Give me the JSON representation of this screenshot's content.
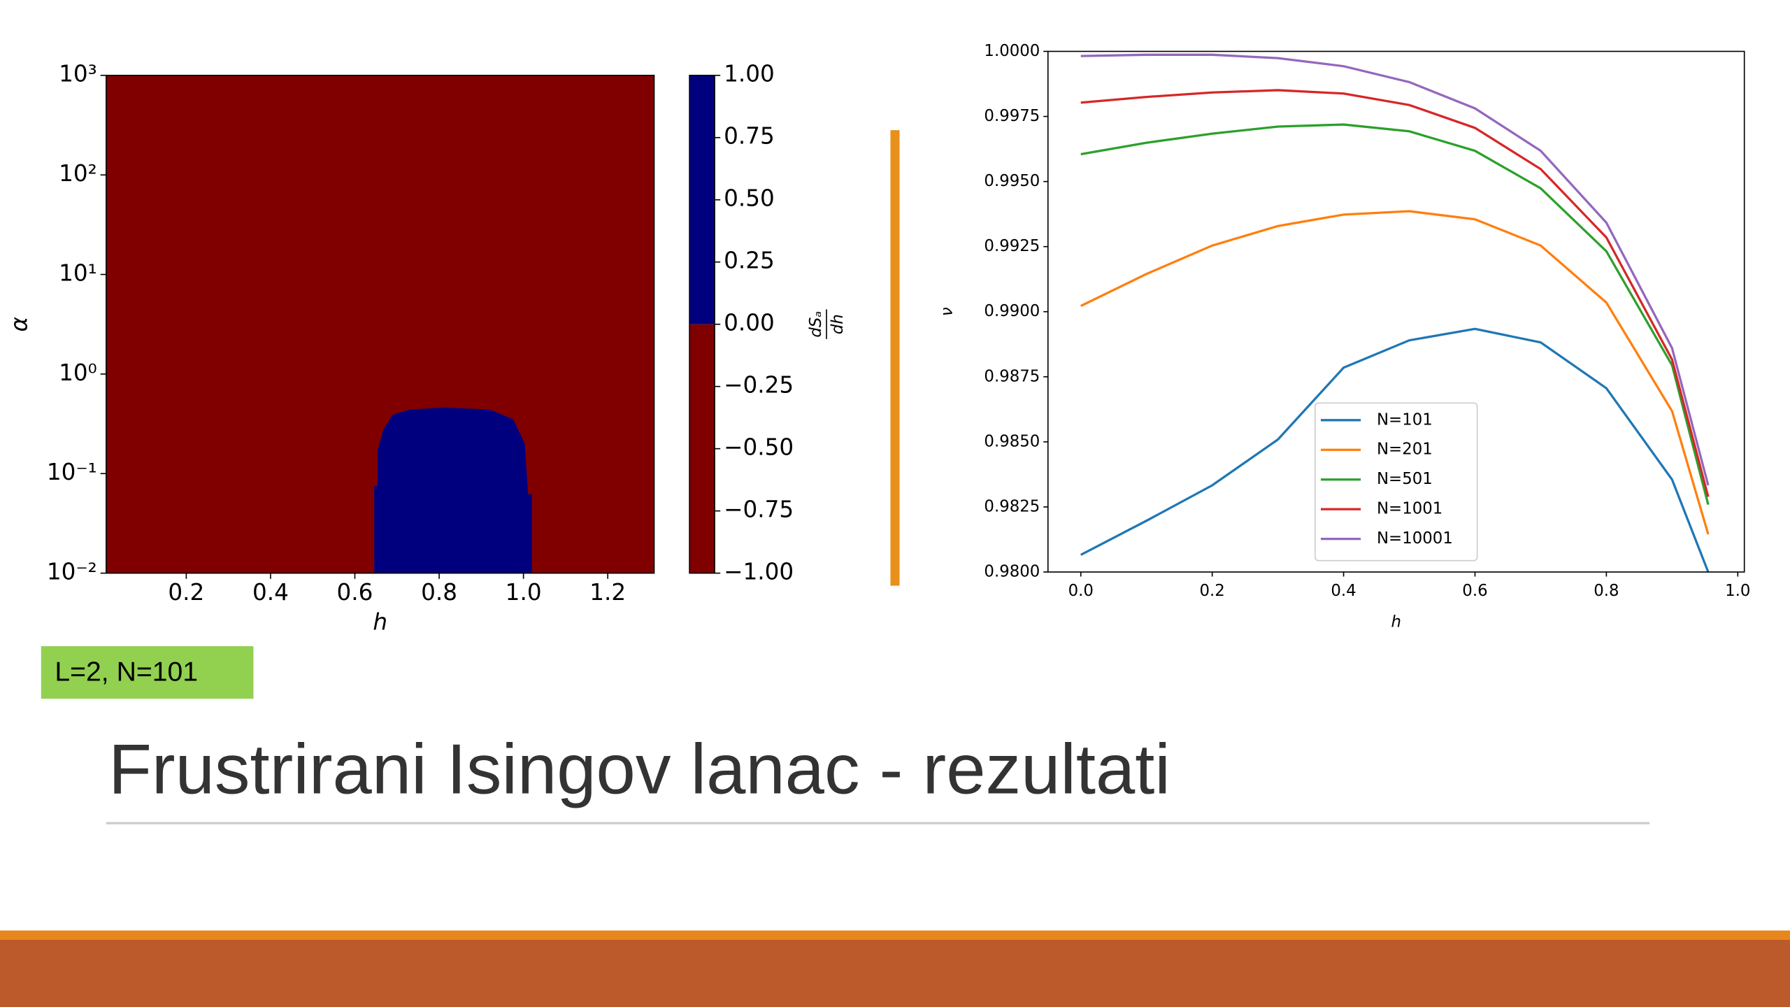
{
  "slide": {
    "title": "Frustrirani Isingov lanac - rezultati",
    "tag": "L=2, N=101"
  },
  "chart_data": [
    {
      "type": "heatmap",
      "xlabel": "h",
      "ylabel": "α",
      "xlim": [
        0.01,
        1.31
      ],
      "xticks": [
        0.2,
        0.4,
        0.6,
        0.8,
        {
          "value": 1.0,
          "label": "1.0"
        },
        1.2
      ],
      "ylim": [
        0.01,
        1000
      ],
      "yscale": "log",
      "yticks": [
        {
          "value": 0.01,
          "label": "10⁻²"
        },
        {
          "value": 0.1,
          "label": "10⁻¹"
        },
        {
          "value": 1,
          "label": "10⁰"
        },
        {
          "value": 10,
          "label": "10¹"
        },
        {
          "value": 100,
          "label": "10²"
        },
        {
          "value": 1000,
          "label": "10³"
        }
      ],
      "background_value": -1,
      "regions": [
        {
          "value": 1,
          "x": [
            0.646,
            0.646,
            0.654,
            0.654,
            0.668,
            0.69,
            0.73,
            0.81,
            0.92,
            0.976,
            1.003,
            1.011,
            1.02,
            1.02
          ],
          "y": [
            0.01,
            0.075,
            0.075,
            0.17,
            0.28,
            0.39,
            0.44,
            0.46,
            0.44,
            0.35,
            0.2,
            0.062,
            0.062,
            0.01
          ]
        }
      ],
      "clim": [
        -1,
        1
      ],
      "levels": [
        {
          "range": [
            -1,
            0
          ],
          "color": "#800000"
        },
        {
          "range": [
            0,
            1
          ],
          "color": "#00007f"
        }
      ],
      "cticks": [
        {
          "value": 1,
          "label": "1.00"
        },
        0.75,
        {
          "value": 0.5,
          "label": "0.50"
        },
        0.25,
        {
          "value": 0,
          "label": "0.00"
        },
        {
          "value": -0.25,
          "label": "−0.25"
        },
        {
          "value": -0.5,
          "label": "−0.50"
        },
        {
          "value": -0.75,
          "label": "−0.75"
        },
        {
          "value": -1,
          "label": "−1.00"
        }
      ],
      "colorbar_label": {
        "numerator": "dSₐ",
        "denominator": "dh"
      }
    },
    {
      "type": "line",
      "xlabel": "h",
      "ylabel": "ν",
      "xlim": [
        -0.05,
        1.01
      ],
      "xticks": [
        {
          "value": 0,
          "label": "0.0"
        },
        0.2,
        0.4,
        0.6,
        0.8,
        {
          "value": 1,
          "label": "1.0"
        }
      ],
      "ylim": [
        0.98,
        1.0
      ],
      "yticks": [
        {
          "value": 0.98,
          "label": "0.9800"
        },
        0.9825,
        {
          "value": 0.985,
          "label": "0.9850"
        },
        0.9875,
        {
          "value": 0.99,
          "label": "0.9900"
        },
        0.9925,
        {
          "value": 0.995,
          "label": "0.9950"
        },
        0.9975,
        {
          "value": 1.0,
          "label": "1.0000"
        }
      ],
      "legend": "lower center",
      "x": [
        0,
        0.1,
        0.2,
        0.3,
        0.4,
        0.5,
        0.6,
        0.7,
        0.8,
        0.9,
        0.955
      ],
      "series": [
        {
          "name": "N=101",
          "color": "#1f77b4",
          "values": [
            0.98066,
            0.98197,
            0.98333,
            0.98509,
            0.98785,
            0.9889,
            0.98934,
            0.98882,
            0.98706,
            0.98355,
            0.98
          ]
        },
        {
          "name": "N=201",
          "color": "#ff7f0e",
          "values": [
            0.99022,
            0.99145,
            0.99254,
            0.99329,
            0.99373,
            0.99386,
            0.99355,
            0.99254,
            0.99035,
            0.98618,
            0.98145
          ]
        },
        {
          "name": "N=501",
          "color": "#2ca02c",
          "values": [
            0.99605,
            0.99649,
            0.99684,
            0.99711,
            0.99719,
            0.99693,
            0.99618,
            0.99474,
            0.99232,
            0.98794,
            0.98259
          ]
        },
        {
          "name": "N=1001",
          "color": "#d62728",
          "values": [
            0.99803,
            0.99825,
            0.99842,
            0.99851,
            0.99838,
            0.99794,
            0.99706,
            0.99548,
            0.99285,
            0.98816,
            0.98289
          ]
        },
        {
          "name": "N=10001",
          "color": "#9467bd",
          "values": [
            0.99982,
            0.99987,
            0.99987,
            0.99974,
            0.99943,
            0.99882,
            0.99781,
            0.99618,
            0.99342,
            0.9886,
            0.98333
          ]
        }
      ]
    }
  ]
}
